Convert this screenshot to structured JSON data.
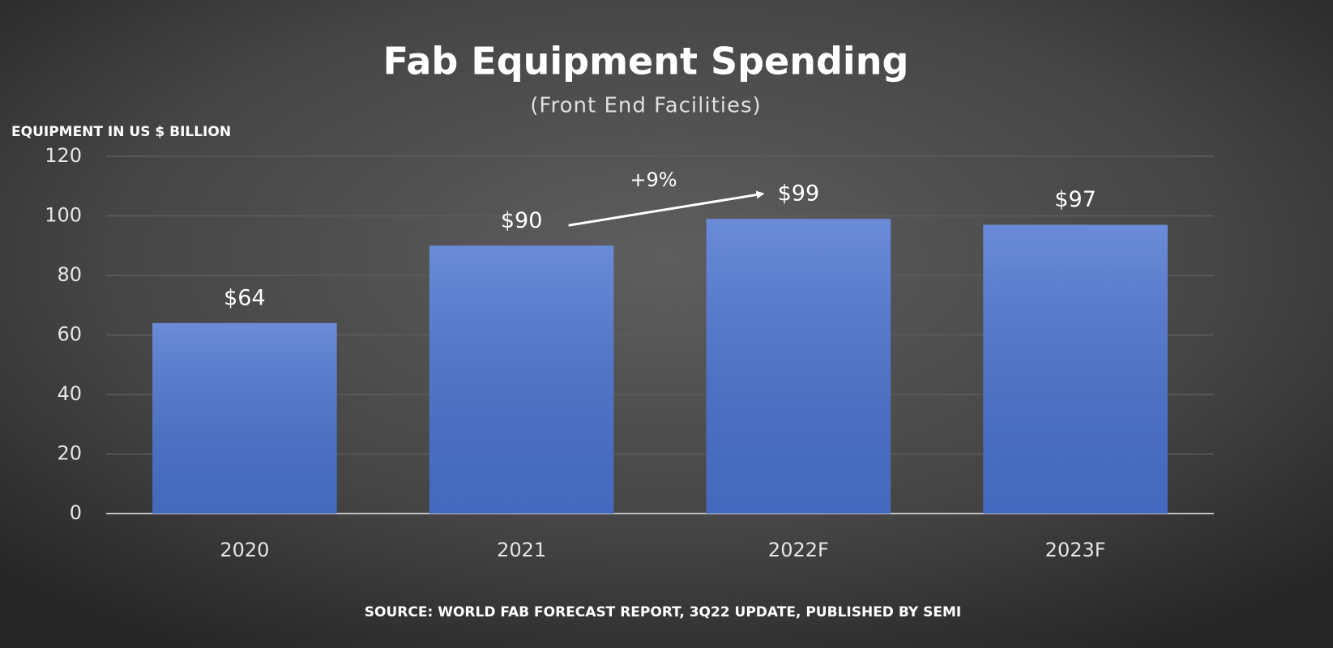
{
  "chart_data": {
    "type": "bar",
    "title": "Fab Equipment Spending",
    "subtitle": "(Front End Facilities)",
    "y_axis_label": "EQUIPMENT IN US $ BILLION",
    "categories": [
      "2020",
      "2021",
      "2022F",
      "2023F"
    ],
    "values": [
      64,
      90,
      99,
      97
    ],
    "value_labels": [
      "$64",
      "$90",
      "$99",
      "$97"
    ],
    "color": "#4a72cf",
    "ylim": [
      0,
      120
    ],
    "yticks": [
      0,
      20,
      40,
      60,
      80,
      100,
      120
    ],
    "grid": true,
    "annotation": "+9%",
    "source": "SOURCE: WORLD FAB FORECAST REPORT, 3Q22 UPDATE, PUBLISHED BY SEMI"
  }
}
